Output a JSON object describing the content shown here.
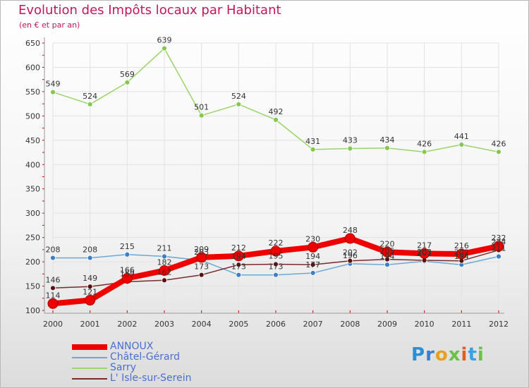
{
  "chart": {
    "title": "Evolution des Impôts locaux par Habitant",
    "subtitle": "(en € et par an)"
  },
  "brand": {
    "letters": [
      "P",
      "r",
      "o",
      "x",
      "i",
      "t",
      "i"
    ],
    "colors": [
      "#2b8fd6",
      "#3a7fd0",
      "#e8a020",
      "#6cc04a",
      "#e85a20",
      "#3aa0e0",
      "#6cc04a"
    ]
  },
  "chart_data": {
    "type": "line",
    "title": "Evolution des Impôts locaux par Habitant",
    "subtitle": "(en € et par an)",
    "xlabel": "",
    "ylabel": "",
    "categories": [
      "2000",
      "2001",
      "2002",
      "2003",
      "2004",
      "2005",
      "2006",
      "2007",
      "2008",
      "2009",
      "2010",
      "2011",
      "2012"
    ],
    "ylim": [
      100,
      650
    ],
    "yticks": [
      100,
      150,
      200,
      250,
      300,
      350,
      400,
      450,
      500,
      550,
      600,
      650
    ],
    "grid": true,
    "legend": "bottom-left",
    "series": [
      {
        "name": "ANNOUX",
        "color": "#ee0000",
        "values": [
          114,
          121,
          166,
          182,
          209,
          212,
          222,
          230,
          248,
          220,
          217,
          216,
          232
        ],
        "labels": [
          "114",
          "121",
          "166",
          "182",
          "209",
          "212",
          "222",
          "230",
          "248",
          "220",
          "217",
          "216",
          "232"
        ]
      },
      {
        "name": "Châtel-Gérard",
        "color": "#6aa8d8",
        "values": [
          208,
          208,
          215,
          211,
          203,
          173,
          173,
          177,
          196,
          194,
          201,
          194,
          211
        ],
        "labels": [
          "208",
          "208",
          "215",
          "211",
          "203",
          "173",
          "173",
          "177",
          "196",
          "194",
          "201",
          "194",
          "211"
        ]
      },
      {
        "name": "Sarry",
        "color": "#9ad46a",
        "values": [
          549,
          524,
          569,
          639,
          501,
          524,
          492,
          431,
          433,
          434,
          426,
          441,
          426
        ],
        "labels": [
          "549",
          "524",
          "569",
          "639",
          "501",
          "524",
          "492",
          "431",
          "433",
          "434",
          "426",
          "441",
          "426"
        ]
      },
      {
        "name": "L' Isle-sur-Serein",
        "color": "#7a2a2a",
        "values": [
          146,
          149,
          159,
          162,
          173,
          194,
          195,
          194,
          202,
          205,
          203,
          202,
          224
        ],
        "labels": [
          "146",
          "149",
          "159",
          "162",
          "173",
          "194",
          "195",
          "194",
          "202",
          "205",
          "203",
          "202",
          "224"
        ]
      }
    ]
  }
}
